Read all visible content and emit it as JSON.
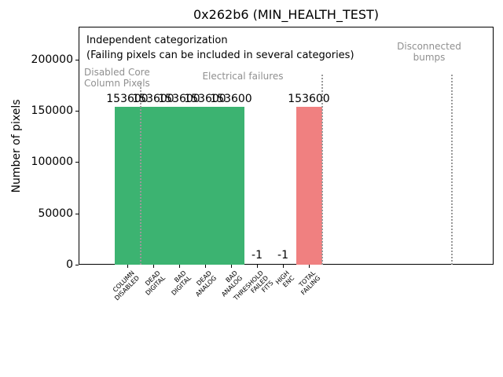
{
  "title": "0x262b6 (MIN_HEALTH_TEST)",
  "ylabel": "Number of pixels",
  "ytick_labels": [
    "0",
    "50000",
    "100000",
    "150000",
    "200000"
  ],
  "annotations": {
    "independent_line1": "Independent categorization",
    "independent_line2": "(Failing pixels can be included in several categories)",
    "group_disabled": "Disabled Core\nColumn Pixels",
    "group_electrical": "Electrical failures",
    "group_bumps": "Disconnected\nbumps"
  },
  "colors": {
    "pass_bar_green": "#3CB371",
    "fail_bar_red": "#F08080",
    "group_text_gray": "#909090",
    "separator_gray": "#999999"
  },
  "chart_data": {
    "type": "bar",
    "title": "0x262b6 (MIN_HEALTH_TEST)",
    "xlabel": "",
    "ylabel": "Number of pixels",
    "ylim": [
      0,
      233000
    ],
    "yticks": [
      0,
      50000,
      100000,
      150000,
      200000
    ],
    "grid": false,
    "legend": false,
    "categories": [
      "COLUMN\nDISABLED",
      "DEAD\nDIGITAL",
      "BAD\nDIGITAL",
      "DEAD\nANALOG",
      "BAD\nANALOG",
      "THRESHOLD\nFAILED\nFITS",
      "HIGH\nENC",
      "TOTAL\nFAILING"
    ],
    "values": [
      153600,
      153600,
      153600,
      153600,
      153600,
      -1,
      -1,
      153600
    ],
    "bar_labels": [
      "153600",
      "153600",
      "153600",
      "153600",
      "153600",
      "-1",
      "-1",
      "153600"
    ],
    "bar_colors": [
      "#3CB371",
      "#3CB371",
      "#3CB371",
      "#3CB371",
      "#3CB371",
      null,
      null,
      "#F08080"
    ],
    "group_sections": [
      "Disabled Core Column Pixels",
      "Electrical failures",
      "Disconnected bumps"
    ]
  }
}
